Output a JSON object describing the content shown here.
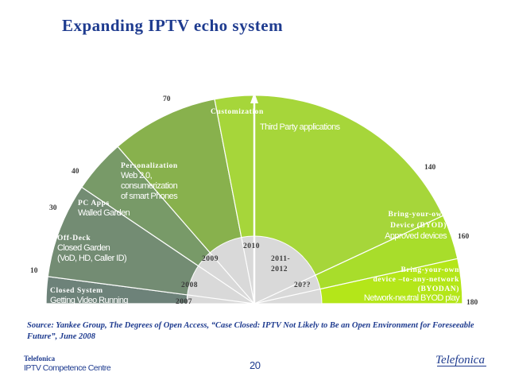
{
  "title": "Expanding IPTV echo system",
  "segments": [
    {
      "id": "closed-system",
      "title": "Closed System",
      "body": [
        "Getting Video Running"
      ],
      "color": "#6d8279"
    },
    {
      "id": "off-deck",
      "title": "Off-Deck",
      "body": [
        "Closed Garden",
        "(VoD, HD, Caller ID)"
      ],
      "color": "#738c73"
    },
    {
      "id": "pc-apps",
      "title": "PC Apps",
      "body": [
        "Walled Garden"
      ],
      "color": "#789a68"
    },
    {
      "id": "personalization",
      "title": "Personalization",
      "body": [
        "Web 2.0,",
        "consumerization",
        "of smart Phones"
      ],
      "color": "#88b14d"
    },
    {
      "id": "customization",
      "title": "Customization",
      "body": [
        "Third Party applications"
      ],
      "color": "#a6d63a"
    },
    {
      "id": "byod",
      "title": "Bring-your-own",
      "body": [
        "Device (BYOD)",
        "Approved devices"
      ],
      "color": "#a8dd2b"
    },
    {
      "id": "byodan",
      "title": "Bring-your-own",
      "body": [
        "device –to-any-network",
        "(BYODAN)",
        "Network-neutral BYOD play"
      ],
      "color": "#b4e619"
    }
  ],
  "boundary_numbers": [
    "10",
    "30",
    "40",
    "70",
    "140",
    "160",
    "180"
  ],
  "years": [
    "2007",
    "2008",
    "2009",
    "2010",
    "2011-",
    "2012",
    "20??"
  ],
  "source_note": "Source: Yankee Group, The Degrees of Open Access, “Case Closed: IPTV Not Likely to Be an Open Environment for Foreseeable Future”, June 2008",
  "footer": {
    "company": "Telefonica",
    "centre": "IPTV Competence Centre",
    "page": "20"
  },
  "logo_text": "Telefonica",
  "colors": {
    "title": "#1e3b8f",
    "hub": "#d9d9d9",
    "arrow": "#ffffff"
  }
}
